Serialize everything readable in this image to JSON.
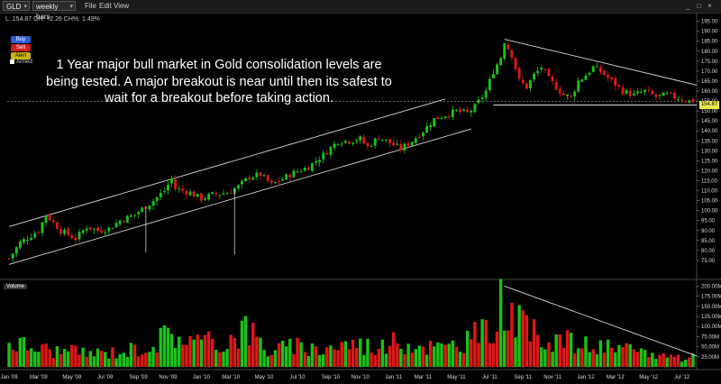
{
  "toolbar": {
    "symbol": "GLD",
    "interval": "weekly bars",
    "menu": [
      "File",
      "Edit",
      "View"
    ]
  },
  "quote_line": "L: 154.87  CH: +2.26  CH%: 1.49%",
  "order_buttons": {
    "buy": "Buy",
    "sell": "Sell",
    "alert": "Alert"
  },
  "armed_label": "Armed",
  "annotation": "1 Year major bull market in Gold consolidation levels are being tested. A major breakout is near until then its safest to wait for a breakout before taking action.",
  "volume_label": "Volume",
  "last_price_label": "154.87",
  "colors": {
    "up": "#19c219",
    "down": "#e01818",
    "trendline": "#d8d8d8",
    "background": "#000000",
    "price_tag": "#e8e84a"
  },
  "chart_data": [
    {
      "type": "candlestick",
      "title": "",
      "series": [
        {
          "name": "GLD",
          "weekly_close_path": [
            [
              0,
              76
            ],
            [
              3,
              84
            ],
            [
              8,
              90
            ],
            [
              10,
              98
            ],
            [
              14,
              90
            ],
            [
              18,
              86
            ],
            [
              21,
              92
            ],
            [
              24,
              90
            ],
            [
              27,
              91
            ],
            [
              30,
              95
            ],
            [
              34,
              98
            ],
            [
              39,
              105
            ],
            [
              42,
              110
            ],
            [
              44,
              116
            ],
            [
              45,
              111
            ],
            [
              49,
              109
            ],
            [
              52,
              106
            ],
            [
              55,
              108
            ],
            [
              59,
              109
            ],
            [
              62,
              112
            ],
            [
              65,
              117
            ],
            [
              68,
              118
            ],
            [
              71,
              113
            ],
            [
              74,
              116
            ],
            [
              77,
              119
            ],
            [
              81,
              122
            ],
            [
              85,
              128
            ],
            [
              89,
              135
            ],
            [
              92,
              135
            ],
            [
              95,
              136
            ],
            [
              97,
              132
            ],
            [
              100,
              137
            ],
            [
              103,
              134
            ],
            [
              106,
              131
            ],
            [
              109,
              135
            ],
            [
              112,
              140
            ],
            [
              115,
              146
            ],
            [
              118,
              148
            ],
            [
              121,
              150
            ],
            [
              124,
              149
            ],
            [
              126,
              152
            ],
            [
              129,
              160
            ],
            [
              131,
              170
            ],
            [
              133,
              177
            ],
            [
              134,
              185
            ],
            [
              136,
              178
            ],
            [
              138,
              165
            ],
            [
              140,
              162
            ],
            [
              142,
              168
            ],
            [
              144,
              172
            ],
            [
              146,
              166
            ],
            [
              148,
              162
            ],
            [
              150,
              158
            ],
            [
              152,
              157
            ],
            [
              154,
              165
            ],
            [
              156,
              168
            ],
            [
              158,
              172
            ],
            [
              160,
              170
            ],
            [
              163,
              165
            ],
            [
              166,
              160
            ],
            [
              169,
              158
            ],
            [
              172,
              160
            ],
            [
              175,
              157
            ],
            [
              178,
              158
            ],
            [
              180,
              157
            ],
            [
              182,
              156
            ],
            [
              184,
              155
            ]
          ]
        }
      ],
      "xlabel": "",
      "ylabel": "",
      "ylim": [
        70,
        198
      ],
      "y_ticks": [
        75,
        80,
        85,
        90,
        95,
        100,
        105,
        110,
        115,
        120,
        125,
        130,
        135,
        140,
        145,
        150,
        155,
        160,
        165,
        170,
        175,
        180,
        185,
        190,
        195
      ],
      "y_tick_labels": [
        "75.00",
        "80.00",
        "85.00",
        "90.00",
        "95.00",
        "100.00",
        "105.00",
        "110.00",
        "115.00",
        "120.00",
        "125.00",
        "130.00",
        "135.00",
        "140.00",
        "145.00",
        "150.00",
        "155.00",
        "160.00",
        "165.00",
        "170.00",
        "175.00",
        "180.00",
        "185.00",
        "190.00",
        "195.00"
      ],
      "x_tick_labels": [
        "Jan '09",
        "Mar '09",
        "May '09",
        "Jul '09",
        "Sep '09",
        "Nov '09",
        "Jan '10",
        "Mar '10",
        "May '10",
        "Jul '10",
        "Sep '10",
        "Nov '10",
        "Jan '11",
        "Mar '11",
        "May '11",
        "Jul '11",
        "Sep '11",
        "Nov '11",
        "Jan '12",
        "Mar '12",
        "May '12",
        "Jul '12"
      ],
      "x_tick_weeks": [
        0,
        8,
        17,
        26,
        35,
        43,
        52,
        60,
        69,
        78,
        87,
        95,
        104,
        112,
        121,
        130,
        139,
        147,
        156,
        164,
        173,
        182
      ],
      "weeks": 186,
      "last_price": 154.87,
      "trendlines": [
        {
          "name": "channel-upper",
          "p1": [
            0,
            92
          ],
          "p2": [
            118,
            156
          ]
        },
        {
          "name": "channel-lower",
          "p1": [
            0,
            73
          ],
          "p2": [
            125,
            141
          ]
        },
        {
          "name": "resistance",
          "p1": [
            134,
            186
          ],
          "p2": [
            186,
            163
          ]
        },
        {
          "name": "support",
          "p1": [
            131,
            153
          ],
          "p2": [
            186,
            153
          ]
        }
      ],
      "spikes": [
        {
          "week": 37,
          "low": 79
        },
        {
          "week": 61,
          "low": 78
        }
      ]
    },
    {
      "type": "bar",
      "title": "Volume",
      "ylim": [
        0,
        210
      ],
      "y_ticks": [
        25,
        50,
        75,
        100,
        125,
        150,
        175,
        200
      ],
      "y_tick_labels": [
        "25.00M",
        "50.00M",
        "75.00M",
        "100.00M",
        "125.00M",
        "150.00M",
        "175.00M",
        "200.00M"
      ],
      "volume_profile": [
        [
          0,
          70
        ],
        [
          6,
          55
        ],
        [
          12,
          45
        ],
        [
          18,
          40
        ],
        [
          25,
          38
        ],
        [
          32,
          45
        ],
        [
          38,
          60
        ],
        [
          44,
          95
        ],
        [
          50,
          70
        ],
        [
          58,
          65
        ],
        [
          64,
          110
        ],
        [
          70,
          45
        ],
        [
          76,
          55
        ],
        [
          84,
          50
        ],
        [
          92,
          65
        ],
        [
          100,
          55
        ],
        [
          106,
          70
        ],
        [
          112,
          60
        ],
        [
          118,
          50
        ],
        [
          124,
          80
        ],
        [
          130,
          95
        ],
        [
          134,
          200
        ],
        [
          137,
          120
        ],
        [
          142,
          90
        ],
        [
          148,
          80
        ],
        [
          154,
          60
        ],
        [
          160,
          55
        ],
        [
          166,
          45
        ],
        [
          172,
          40
        ],
        [
          178,
          30
        ],
        [
          186,
          25
        ]
      ],
      "trendlines": [
        {
          "name": "volume-decline",
          "p1": [
            134,
            200
          ],
          "p2": [
            186,
            27
          ]
        }
      ]
    }
  ]
}
